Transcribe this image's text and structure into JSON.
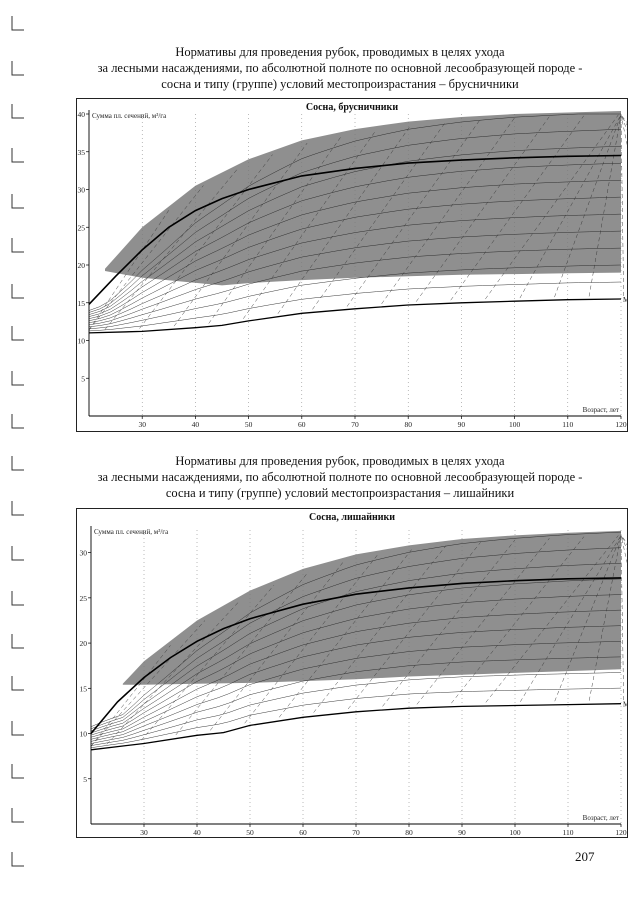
{
  "page": {
    "heading_1": [
      "Нормативы для проведения рубок, проводимых в целях ухода",
      "за лесными насаждениями, по абсолютной полноте по основной лесообразующей породе -",
      "сосна и типу (группе) условий местопроизрастания – брусничники"
    ],
    "heading_2": [
      "Нормативы для проведения рубок, проводимых в целях ухода",
      "за лесными насаждениями, по абсолютной полноте по основной лесообразующей породе -",
      "сосна и типу (группе) условий местопроизрастания – лишайники"
    ],
    "page_number": "207"
  },
  "colors": {
    "shaded_zone": "#8f8f8f",
    "lines": "#111111",
    "background": "#ffffff"
  },
  "chart_data": [
    {
      "type": "area",
      "title": "Сосна, брусничники",
      "ylabel": "Сумма пл. сечений, м³/га",
      "xlabel": "Возраст, лет",
      "x_ticks": [
        30,
        40,
        50,
        60,
        70,
        80,
        90,
        100,
        110,
        120
      ],
      "y_ticks": [
        5,
        10,
        15,
        20,
        25,
        30,
        35,
        40
      ],
      "xlim": [
        20,
        120
      ],
      "ylim": [
        0,
        40
      ],
      "grid": true,
      "series_label": "М",
      "series": [
        {
          "name": "zone-upper",
          "x": [
            23,
            30,
            40,
            50,
            60,
            70,
            80,
            90,
            100,
            110,
            120
          ],
          "values": [
            19.5,
            25,
            30.5,
            34,
            36.5,
            38,
            39,
            39.6,
            40,
            40.2,
            40.4
          ]
        },
        {
          "name": "zone-lower",
          "x": [
            23,
            30,
            45,
            50,
            60,
            70,
            80,
            90,
            100,
            110,
            120
          ],
          "values": [
            19.2,
            18.3,
            17.3,
            17.6,
            18,
            18.3,
            18.5,
            18.7,
            18.8,
            18.9,
            19
          ]
        },
        {
          "name": "bold-curve",
          "x": [
            20,
            25,
            30,
            35,
            40,
            45,
            50,
            60,
            70,
            80,
            90,
            100,
            110,
            120
          ],
          "values": [
            14.8,
            18.5,
            22,
            25,
            27.2,
            28.8,
            30,
            31.8,
            32.8,
            33.5,
            33.9,
            34.2,
            34.4,
            34.5
          ]
        },
        {
          "name": "M",
          "x": [
            20,
            30,
            40,
            45,
            50,
            60,
            70,
            80,
            90,
            100,
            110,
            120
          ],
          "values": [
            11,
            11.2,
            11.7,
            12,
            12.6,
            13.6,
            14.2,
            14.7,
            15,
            15.2,
            15.4,
            15.5
          ]
        }
      ]
    },
    {
      "type": "area",
      "title": "Сосна, лишайники",
      "ylabel": "Сумма пл. сечений, м³/га",
      "xlabel": "Возраст, лет",
      "x_ticks": [
        30,
        40,
        50,
        60,
        70,
        80,
        90,
        100,
        110,
        120
      ],
      "y_ticks": [
        5,
        10,
        15,
        20,
        25,
        30
      ],
      "xlim": [
        20,
        120
      ],
      "ylim": [
        0,
        32.5
      ],
      "grid": true,
      "series_label": "М",
      "series": [
        {
          "name": "zone-upper",
          "x": [
            26,
            30,
            40,
            50,
            60,
            70,
            80,
            90,
            100,
            110,
            120
          ],
          "values": [
            15.5,
            18,
            22.5,
            25.8,
            28.2,
            29.8,
            30.8,
            31.5,
            31.9,
            32.2,
            32.4
          ]
        },
        {
          "name": "zone-lower",
          "x": [
            26,
            30,
            40,
            50,
            60,
            70,
            80,
            90,
            100,
            110,
            120
          ],
          "values": [
            15.4,
            15.4,
            15.5,
            15.6,
            15.8,
            16,
            16.3,
            16.5,
            16.7,
            16.9,
            17.1
          ]
        },
        {
          "name": "bold-curve",
          "x": [
            20,
            25,
            30,
            35,
            40,
            45,
            50,
            60,
            70,
            80,
            90,
            100,
            110,
            120
          ],
          "values": [
            10,
            13.5,
            16.2,
            18.4,
            20.2,
            21.6,
            22.7,
            24.3,
            25.4,
            26.1,
            26.6,
            26.9,
            27.1,
            27.2
          ]
        },
        {
          "name": "M",
          "x": [
            20,
            30,
            40,
            45,
            50,
            60,
            70,
            80,
            90,
            100,
            110,
            120
          ],
          "values": [
            8.2,
            8.9,
            9.8,
            10.1,
            10.9,
            11.8,
            12.4,
            12.8,
            13,
            13.1,
            13.2,
            13.3
          ]
        }
      ]
    }
  ]
}
